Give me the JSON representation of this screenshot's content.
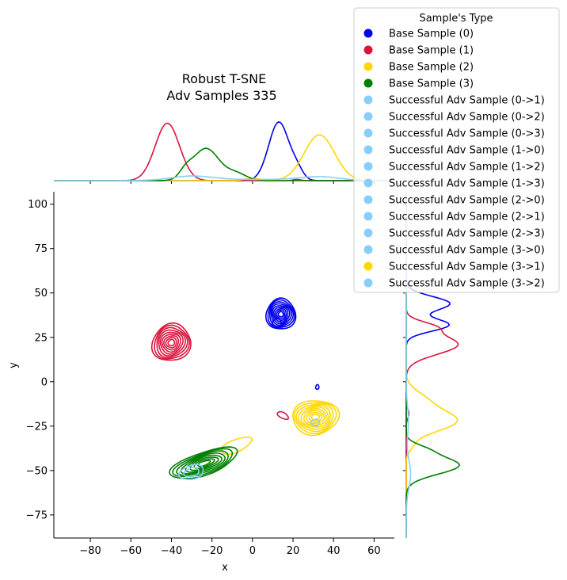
{
  "chart_data": {
    "type": "kde_joint",
    "title": "Robust T-SNE",
    "subtitle": "Adv Samples 335",
    "xlabel": "x",
    "ylabel": "y",
    "xlim": [
      -98,
      70
    ],
    "ylim": [
      -88,
      107
    ],
    "xticks": [
      -80,
      -60,
      -40,
      -20,
      0,
      20,
      40,
      60
    ],
    "yticks": [
      -75,
      -50,
      -25,
      0,
      25,
      50,
      75,
      100
    ],
    "legend": {
      "title": "Sample's Type",
      "placement": "upper-right",
      "entries": [
        {
          "label": "Base Sample (0)",
          "color": "#0000ee"
        },
        {
          "label": "Base Sample (1)",
          "color": "#dc143c"
        },
        {
          "label": "Base Sample (2)",
          "color": "#ffd700"
        },
        {
          "label": "Base Sample (3)",
          "color": "#008000"
        },
        {
          "label": "Successful Adv Sample (0->1)",
          "color": "#87cefa"
        },
        {
          "label": "Successful Adv Sample (0->2)",
          "color": "#87cefa"
        },
        {
          "label": "Successful Adv Sample (0->3)",
          "color": "#87cefa"
        },
        {
          "label": "Successful Adv Sample (1->0)",
          "color": "#87cefa"
        },
        {
          "label": "Successful Adv Sample (1->2)",
          "color": "#87cefa"
        },
        {
          "label": "Successful Adv Sample (1->3)",
          "color": "#87cefa"
        },
        {
          "label": "Successful Adv Sample (2->0)",
          "color": "#87cefa"
        },
        {
          "label": "Successful Adv Sample (2->1)",
          "color": "#87cefa"
        },
        {
          "label": "Successful Adv Sample (2->3)",
          "color": "#87cefa"
        },
        {
          "label": "Successful Adv Sample (3->0)",
          "color": "#87cefa"
        },
        {
          "label": "Successful Adv Sample (3->1)",
          "color": "#ffd700"
        },
        {
          "label": "Successful Adv Sample (3->2)",
          "color": "#87cefa"
        }
      ]
    },
    "series": [
      {
        "label_ref": 0,
        "color": "#0000ee",
        "blobs": [
          {
            "cx": 14,
            "cy": 38,
            "sx": 7,
            "sy": 9,
            "rot": 0,
            "n": 9
          },
          {
            "cx": 12,
            "cy": 33,
            "sx": 2.2,
            "sy": 2.5,
            "rot": 0,
            "n": 1
          },
          {
            "cx": 32,
            "cy": -3,
            "sx": 0.8,
            "sy": 1.3,
            "rot": 0,
            "n": 1
          }
        ]
      },
      {
        "label_ref": 1,
        "color": "#dc143c",
        "blobs": [
          {
            "cx": -40,
            "cy": 22,
            "sx": 9,
            "sy": 11,
            "rot": -20,
            "n": 9
          },
          {
            "cx": 15,
            "cy": -19,
            "sx": 3,
            "sy": 1.6,
            "rot": -35,
            "n": 1
          }
        ]
      },
      {
        "label_ref": 2,
        "color": "#ffd700",
        "blobs": [
          {
            "cx": 31,
            "cy": -20,
            "sx": 11,
            "sy": 10,
            "rot": 10,
            "n": 9
          },
          {
            "cx": -8,
            "cy": -36,
            "sx": 8,
            "sy": 3.5,
            "rot": 25,
            "n": 1
          }
        ]
      },
      {
        "label_ref": 3,
        "color": "#008000",
        "blobs": [
          {
            "cx": -24,
            "cy": -46,
            "sx": 17,
            "sy": 6.5,
            "rot": 22,
            "n": 8
          }
        ]
      },
      {
        "label_ref": 14,
        "color": "#87cefa",
        "blobs": [
          {
            "cx": -30,
            "cy": -51,
            "sx": 6,
            "sy": 4,
            "rot": 20,
            "n": 2
          },
          {
            "cx": 31,
            "cy": -23,
            "sx": 2,
            "sy": 2,
            "rot": 0,
            "n": 1
          }
        ]
      }
    ],
    "marginal_x": [
      {
        "color": "#0000ee",
        "peaks": [
          {
            "mu": 13,
            "sd": 5,
            "h": 1.0
          },
          {
            "mu": 22,
            "sd": 3,
            "h": 0.15
          }
        ]
      },
      {
        "color": "#dc143c",
        "peaks": [
          {
            "mu": -42,
            "sd": 6,
            "h": 0.98
          },
          {
            "mu": 22,
            "sd": 2,
            "h": 0.02
          }
        ]
      },
      {
        "color": "#ffd700",
        "peaks": [
          {
            "mu": 33,
            "sd": 7.5,
            "h": 0.78
          },
          {
            "mu": 0,
            "sd": 4,
            "h": 0.04
          }
        ]
      },
      {
        "color": "#008000",
        "peaks": [
          {
            "mu": -23,
            "sd": 6.5,
            "h": 0.55
          },
          {
            "mu": -33,
            "sd": 3,
            "h": 0.12
          },
          {
            "mu": -8,
            "sd": 5,
            "h": 0.12
          }
        ]
      },
      {
        "color": "#87cefa",
        "peaks": [
          {
            "mu": -30,
            "sd": 10,
            "h": 0.07
          },
          {
            "mu": 33,
            "sd": 10,
            "h": 0.06
          },
          {
            "mu": 0,
            "sd": 25,
            "h": 0.02
          }
        ]
      }
    ],
    "marginal_y": [
      {
        "color": "#0000ee",
        "peaks": [
          {
            "mu": 44,
            "sd": 4,
            "h": 0.8
          },
          {
            "mu": 32,
            "sd": 3.5,
            "h": 0.78
          }
        ]
      },
      {
        "color": "#dc143c",
        "peaks": [
          {
            "mu": 21,
            "sd": 5.5,
            "h": 0.95
          },
          {
            "mu": 31,
            "sd": 3,
            "h": 0.4
          },
          {
            "mu": -18,
            "sd": 2.5,
            "h": 0.05
          }
        ]
      },
      {
        "color": "#ffd700",
        "peaks": [
          {
            "mu": -22,
            "sd": 6,
            "h": 0.92
          },
          {
            "mu": -10,
            "sd": 5,
            "h": 0.3
          },
          {
            "mu": -36,
            "sd": 3,
            "h": 0.08
          }
        ]
      },
      {
        "color": "#008000",
        "peaks": [
          {
            "mu": -47,
            "sd": 5,
            "h": 0.97
          },
          {
            "mu": -38,
            "sd": 3,
            "h": 0.25
          }
        ]
      },
      {
        "color": "#87cefa",
        "peaks": [
          {
            "mu": -52,
            "sd": 8,
            "h": 0.08
          },
          {
            "mu": -22,
            "sd": 8,
            "h": 0.04
          }
        ]
      }
    ]
  }
}
